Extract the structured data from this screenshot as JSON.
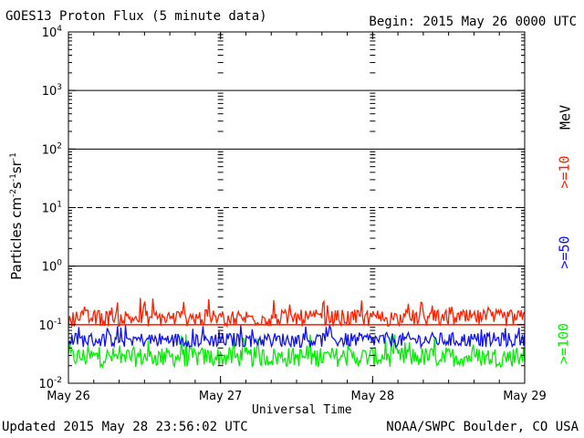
{
  "header": {
    "title": "GOES13 Proton Flux (5 minute data)",
    "begin": "Begin: 2015 May 26 0000 UTC"
  },
  "footer": {
    "updated": "Updated 2015 May 28 23:56:02 UTC",
    "credit": "NOAA/SWPC Boulder, CO USA"
  },
  "colors": {
    "ge10": "#ff2000",
    "ge50": "#1010ff",
    "ge100": "#00ee00",
    "mev": "#000000"
  },
  "legend": {
    "unit": "MeV",
    "ge10": ">=10",
    "ge50": ">=50",
    "ge100": ">=100"
  },
  "chart_data": {
    "type": "line",
    "title": "GOES13 Proton Flux (5 minute data)",
    "xlabel": "Universal Time",
    "ylabel": "Particles cm-2s-1sr-1",
    "yscale": "log",
    "ylim": [
      0.01,
      10000
    ],
    "xlim": [
      "2015-05-26",
      "2015-05-29"
    ],
    "x_ticks": [
      "May 26",
      "May 27",
      "May 28",
      "May 29"
    ],
    "y_ticks": [
      {
        "base": "10",
        "exp": "-2"
      },
      {
        "base": "10",
        "exp": "-1"
      },
      {
        "base": "10",
        "exp": "0"
      },
      {
        "base": "10",
        "exp": "1"
      },
      {
        "base": "10",
        "exp": "2"
      },
      {
        "base": "10",
        "exp": "3"
      },
      {
        "base": "10",
        "exp": "4"
      }
    ],
    "threshold": {
      "value": 10,
      "style": "dashed"
    },
    "reference_line": {
      "value": 0.1,
      "color": "#ff2000"
    },
    "series": [
      {
        "name": ">=10",
        "unit": "MeV",
        "color": "#ff2000",
        "typical": 0.13,
        "range": [
          0.09,
          0.3
        ]
      },
      {
        "name": ">=50",
        "unit": "MeV",
        "color": "#1010ff",
        "typical": 0.055,
        "range": [
          0.035,
          0.1
        ]
      },
      {
        "name": ">=100",
        "unit": "MeV",
        "color": "#00ee00",
        "typical": 0.028,
        "range": [
          0.017,
          0.07
        ]
      }
    ]
  }
}
